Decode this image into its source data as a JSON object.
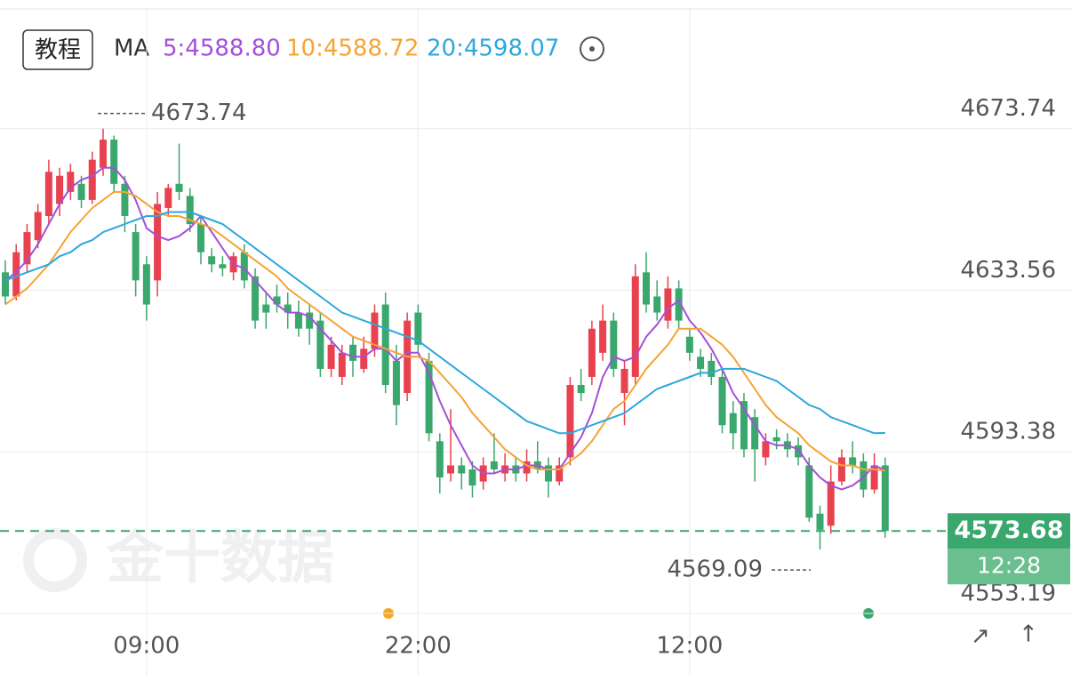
{
  "header": {
    "tutorial_button": "教程",
    "ma_label": "MA"
  },
  "watermark": "金十数据",
  "chart_data": {
    "type": "candlestick",
    "categories": [
      null,
      null,
      null,
      null,
      null,
      null,
      null,
      null,
      null,
      null,
      null,
      null,
      null,
      "09:00",
      null,
      null,
      null,
      null,
      null,
      null,
      null,
      null,
      null,
      null,
      null,
      null,
      null,
      null,
      null,
      null,
      null,
      null,
      null,
      null,
      null,
      null,
      null,
      null,
      "22:00",
      null,
      null,
      null,
      null,
      null,
      null,
      null,
      null,
      null,
      null,
      null,
      null,
      null,
      null,
      null,
      null,
      null,
      null,
      null,
      null,
      null,
      null,
      null,
      null,
      "12:00",
      null,
      null,
      null,
      null,
      null,
      null,
      null,
      null,
      null,
      null,
      null,
      null,
      null,
      null,
      null,
      null,
      null,
      null
    ],
    "ohlc": [
      [
        4638,
        4641,
        4630,
        4632
      ],
      [
        4632,
        4645,
        4631,
        4643
      ],
      [
        4640,
        4650,
        4638,
        4648
      ],
      [
        4646,
        4655,
        4644,
        4653
      ],
      [
        4652,
        4666,
        4650,
        4663
      ],
      [
        4655,
        4664,
        4652,
        4662
      ],
      [
        4658,
        4665,
        4656,
        4663
      ],
      [
        4660,
        4662,
        4654,
        4656
      ],
      [
        4656,
        4668,
        4655,
        4666
      ],
      [
        4664,
        4673.74,
        4662,
        4671
      ],
      [
        4671,
        4672,
        4658,
        4660
      ],
      [
        4660,
        4662,
        4648,
        4652
      ],
      [
        4648,
        4650,
        4632,
        4636
      ],
      [
        4640,
        4642,
        4626,
        4630
      ],
      [
        4636,
        4658,
        4632,
        4655
      ],
      [
        4654,
        4660,
        4652,
        4659
      ],
      [
        4660,
        4670,
        4656,
        4658
      ],
      [
        4657,
        4659,
        4648,
        4650
      ],
      [
        4650,
        4652,
        4640,
        4643
      ],
      [
        4642,
        4644,
        4638,
        4640
      ],
      [
        4640,
        4642,
        4637,
        4639
      ],
      [
        4638,
        4643,
        4636,
        4642
      ],
      [
        4643,
        4645,
        4634,
        4636
      ],
      [
        4637,
        4639,
        4624,
        4626
      ],
      [
        4630,
        4633,
        4624,
        4628
      ],
      [
        4632,
        4635,
        4628,
        4630
      ],
      [
        4630,
        4633,
        4624,
        4628
      ],
      [
        4628,
        4631,
        4622,
        4624
      ],
      [
        4628,
        4630,
        4620,
        4624
      ],
      [
        4626,
        4628,
        4612,
        4614
      ],
      [
        4614,
        4622,
        4612,
        4620
      ],
      [
        4612,
        4620,
        4610,
        4618
      ],
      [
        4620,
        4622,
        4612,
        4616
      ],
      [
        4614,
        4622,
        4613,
        4619
      ],
      [
        4619,
        4630,
        4617,
        4628
      ],
      [
        4630,
        4633,
        4608,
        4610
      ],
      [
        4616,
        4620,
        4600,
        4605
      ],
      [
        4608,
        4628,
        4606,
        4626
      ],
      [
        4628,
        4630,
        4618,
        4620
      ],
      [
        4616,
        4618,
        4596,
        4598
      ],
      [
        4596,
        4598,
        4583,
        4587
      ],
      [
        4588,
        4604,
        4586,
        4590
      ],
      [
        4590,
        4592,
        4584,
        4588
      ],
      [
        4589,
        4591,
        4582,
        4585
      ],
      [
        4586,
        4592,
        4584,
        4590
      ],
      [
        4591,
        4598,
        4588,
        4589
      ],
      [
        4588,
        4593,
        4586,
        4590
      ],
      [
        4590,
        4592,
        4586,
        4588
      ],
      [
        4588,
        4594,
        4586,
        4591
      ],
      [
        4591,
        4596,
        4588,
        4589
      ],
      [
        4590,
        4592,
        4582,
        4586
      ],
      [
        4586,
        4592,
        4585,
        4590
      ],
      [
        4592,
        4612,
        4590,
        4610
      ],
      [
        4610,
        4614,
        4606,
        4608
      ],
      [
        4612,
        4626,
        4610,
        4624
      ],
      [
        4618,
        4630,
        4616,
        4626
      ],
      [
        4626,
        4628,
        4612,
        4614
      ],
      [
        4608,
        4616,
        4600,
        4614
      ],
      [
        4612,
        4640,
        4610,
        4637
      ],
      [
        4638,
        4643,
        4628,
        4630
      ],
      [
        4632,
        4636,
        4626,
        4628
      ],
      [
        4626,
        4637,
        4624,
        4634
      ],
      [
        4634,
        4636,
        4624,
        4626
      ],
      [
        4622,
        4624,
        4616,
        4618
      ],
      [
        4617,
        4619,
        4612,
        4614
      ],
      [
        4616,
        4618,
        4610,
        4612
      ],
      [
        4612,
        4614,
        4598,
        4600
      ],
      [
        4603,
        4606,
        4594,
        4598
      ],
      [
        4606,
        4608,
        4592,
        4594
      ],
      [
        4602,
        4604,
        4586,
        4594
      ],
      [
        4592,
        4598,
        4590,
        4596
      ],
      [
        4597,
        4599,
        4594,
        4596
      ],
      [
        4596,
        4598,
        4592,
        4594
      ],
      [
        4595,
        4597,
        4590,
        4592
      ],
      [
        4590,
        4592,
        4576,
        4577
      ],
      [
        4578,
        4580,
        4569.09,
        4574
      ],
      [
        4575,
        4590,
        4573,
        4586
      ],
      [
        4586,
        4594,
        4585,
        4592
      ],
      [
        4592,
        4596,
        4588,
        4590
      ],
      [
        4591,
        4593,
        4582,
        4584
      ],
      [
        4584,
        4593,
        4583,
        4590
      ],
      [
        4590,
        4592,
        4572,
        4573.68
      ]
    ],
    "up_color": "#e8414f",
    "down_color": "#3aa76d",
    "ma_series": [
      {
        "name": "5:4588.80",
        "color": "#a64fd8",
        "values": [
          4636,
          4638,
          4641,
          4645,
          4650,
          4655,
          4659,
          4661,
          4662,
          4664,
          4664,
          4661,
          4656,
          4649,
          4647,
          4646,
          4647,
          4649,
          4652,
          4648,
          4644,
          4640,
          4639,
          4636,
          4633,
          4630,
          4628,
          4628,
          4627,
          4624,
          4621,
          4618,
          4617,
          4617,
          4619,
          4619,
          4616,
          4618,
          4618,
          4613,
          4606,
          4600,
          4595,
          4590,
          4588,
          4588,
          4589,
          4589,
          4590,
          4590,
          4589,
          4589,
          4593,
          4597,
          4603,
          4612,
          4617,
          4616,
          4617,
          4622,
          4625,
          4629,
          4631,
          4626,
          4623,
          4619,
          4614,
          4608,
          4604,
          4600,
          4596,
          4595,
          4595,
          4594,
          4590,
          4587,
          4585,
          4584,
          4585,
          4587,
          4590,
          4588.8
        ]
      },
      {
        "name": "10:4588.72",
        "color": "#f5a433",
        "values": [
          4630,
          4632,
          4634,
          4637,
          4640,
          4644,
          4648,
          4651,
          4654,
          4656,
          4658,
          4658,
          4657,
          4655,
          4653,
          4652,
          4652,
          4651,
          4650,
          4649,
          4647,
          4645,
          4643,
          4641,
          4639,
          4637,
          4634,
          4632,
          4630,
          4628,
          4626,
          4624,
          4622,
          4621,
          4620,
          4619,
          4618,
          4617,
          4617,
          4616,
          4613,
          4610,
          4607,
          4603,
          4600,
          4597,
          4594,
          4592,
          4590,
          4589,
          4589,
          4589,
          4591,
          4593,
          4596,
          4600,
          4604,
          4606,
          4610,
          4614,
          4617,
          4620,
          4624,
          4624,
          4624,
          4622,
          4620,
          4617,
          4613,
          4609,
          4605,
          4602,
          4600,
          4598,
          4595,
          4593,
          4591,
          4590,
          4590,
          4589,
          4589,
          4588.72
        ]
      },
      {
        "name": "20:4598.07",
        "color": "#2ea8dc",
        "values": [
          4636,
          4637,
          4638,
          4639,
          4640,
          4642,
          4643,
          4645,
          4646,
          4648,
          4649,
          4650,
          4651,
          4652,
          4652,
          4653,
          4653,
          4653,
          4652,
          4651,
          4650,
          4648,
          4646,
          4644,
          4642,
          4640,
          4638,
          4636,
          4634,
          4632,
          4630,
          4628,
          4627,
          4626,
          4625,
          4624,
          4623,
          4622,
          4621,
          4619,
          4617,
          4615,
          4613,
          4611,
          4609,
          4607,
          4605,
          4603,
          4601,
          4600,
          4599,
          4598,
          4598,
          4599,
          4600,
          4601,
          4602,
          4603,
          4605,
          4607,
          4609,
          4610,
          4611,
          4612,
          4613,
          4613,
          4614,
          4614,
          4614,
          4613,
          4612,
          4611,
          4609,
          4607,
          4605,
          4604,
          4602,
          4601,
          4600,
          4599,
          4598,
          4598.07
        ]
      }
    ],
    "ylim": [
      4553.19,
      4702.4
    ],
    "yticks": [
      4553.19,
      4593.38,
      4633.56,
      4673.74
    ],
    "grid": true,
    "max_annotation": 4673.74,
    "min_annotation": 4569.09,
    "last_price": 4573.68,
    "countdown": "12:28"
  }
}
